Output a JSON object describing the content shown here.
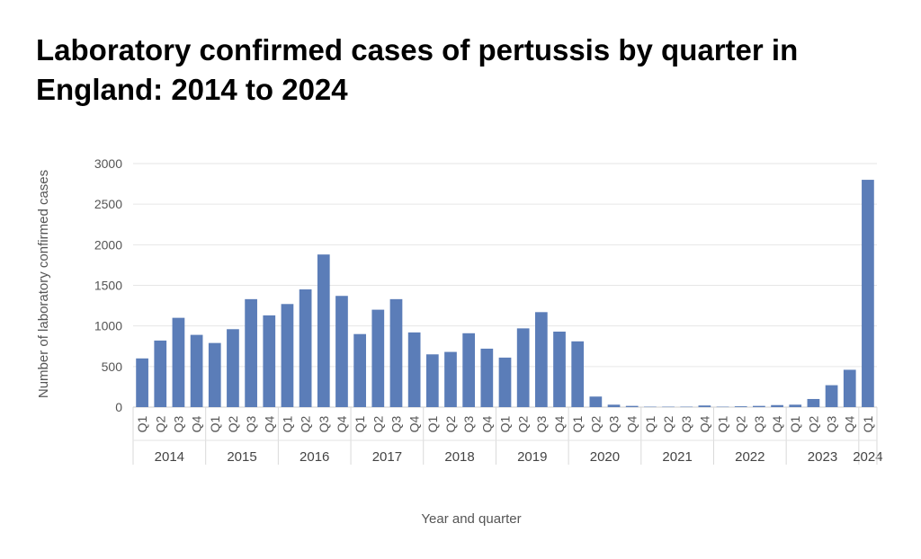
{
  "title": "Laboratory confirmed cases of pertussis by quarter in England: 2014 to 2024",
  "chart_data": {
    "type": "bar",
    "title": "Laboratory confirmed cases of pertussis by quarter in England: 2014 to 2024",
    "xlabel": "Year and quarter",
    "ylabel": "Number of laboratory confirmed cases",
    "ylim": [
      0,
      3000
    ],
    "yticks": [
      0,
      500,
      1000,
      1500,
      2000,
      2500,
      3000
    ],
    "grid": true,
    "legend": "none",
    "bar_color": "#5B7DB8",
    "groups": [
      {
        "year": "2014",
        "quarters": [
          "Q1",
          "Q2",
          "Q3",
          "Q4"
        ],
        "values": [
          600,
          820,
          1100,
          890
        ]
      },
      {
        "year": "2015",
        "quarters": [
          "Q1",
          "Q2",
          "Q3",
          "Q4"
        ],
        "values": [
          790,
          960,
          1330,
          1130
        ]
      },
      {
        "year": "2016",
        "quarters": [
          "Q1",
          "Q2",
          "Q3",
          "Q4"
        ],
        "values": [
          1270,
          1450,
          1880,
          1370
        ]
      },
      {
        "year": "2017",
        "quarters": [
          "Q1",
          "Q2",
          "Q3",
          "Q4"
        ],
        "values": [
          900,
          1200,
          1330,
          920
        ]
      },
      {
        "year": "2018",
        "quarters": [
          "Q1",
          "Q2",
          "Q3",
          "Q4"
        ],
        "values": [
          650,
          680,
          910,
          720
        ]
      },
      {
        "year": "2019",
        "quarters": [
          "Q1",
          "Q2",
          "Q3",
          "Q4"
        ],
        "values": [
          610,
          970,
          1170,
          930
        ]
      },
      {
        "year": "2020",
        "quarters": [
          "Q1",
          "Q2",
          "Q3",
          "Q4"
        ],
        "values": [
          810,
          130,
          30,
          15
        ]
      },
      {
        "year": "2021",
        "quarters": [
          "Q1",
          "Q2",
          "Q3",
          "Q4"
        ],
        "values": [
          5,
          5,
          5,
          20
        ]
      },
      {
        "year": "2022",
        "quarters": [
          "Q1",
          "Q2",
          "Q3",
          "Q4"
        ],
        "values": [
          5,
          10,
          15,
          25
        ]
      },
      {
        "year": "2023",
        "quarters": [
          "Q1",
          "Q2",
          "Q3",
          "Q4"
        ],
        "values": [
          30,
          100,
          270,
          460
        ]
      },
      {
        "year": "2024",
        "quarters": [
          "Q1"
        ],
        "values": [
          2800
        ]
      }
    ]
  }
}
